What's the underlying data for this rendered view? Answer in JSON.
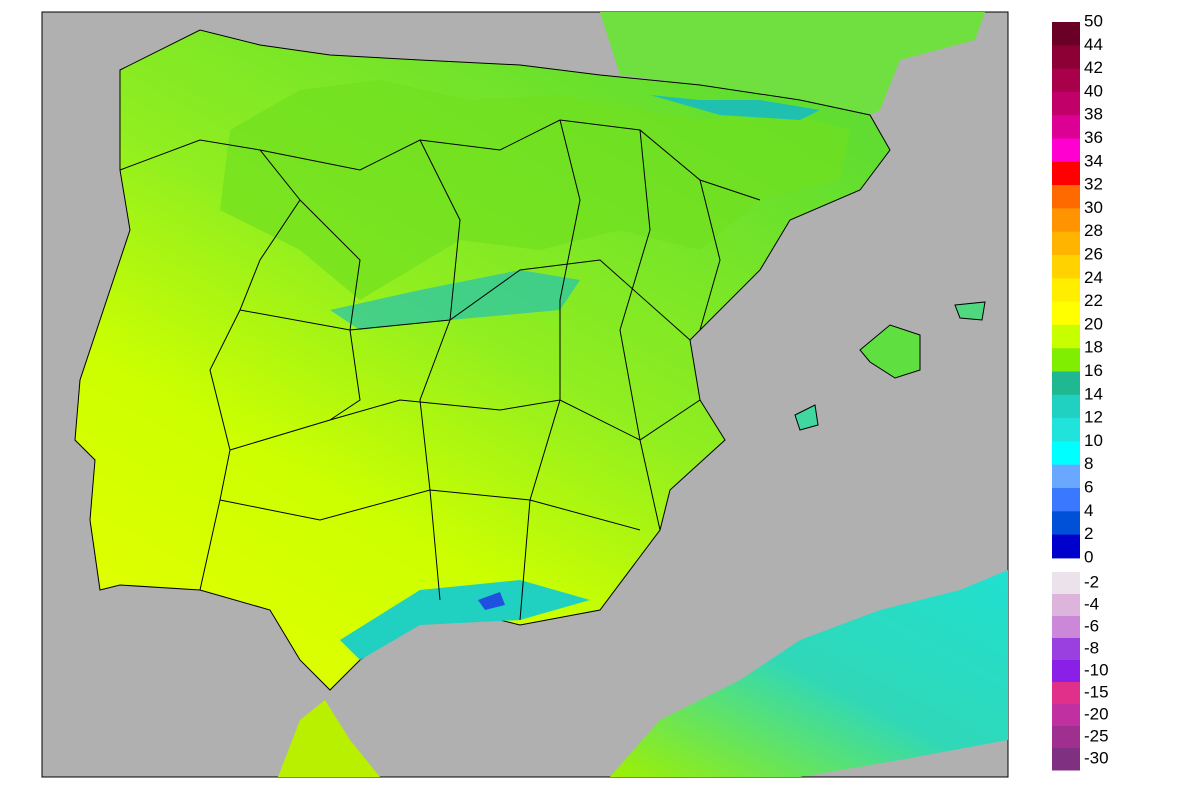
{
  "legend": {
    "positive": {
      "ticks": [
        50,
        44,
        42,
        40,
        38,
        36,
        34,
        32,
        30,
        28,
        26,
        24,
        22,
        20,
        18,
        16,
        14,
        12,
        10,
        8,
        6,
        4,
        2,
        0
      ],
      "colors": [
        "#6a0025",
        "#8c0035",
        "#a8004a",
        "#c2006a",
        "#dc0095",
        "#ff00d0",
        "#ff0000",
        "#ff6a00",
        "#ff9400",
        "#ffb400",
        "#ffd200",
        "#ffee00",
        "#ffff00",
        "#c8ff00",
        "#80ee00",
        "#20b890",
        "#20d0c0",
        "#20e4dc",
        "#00ffff",
        "#6aa8ff",
        "#3a78ff",
        "#0050d8",
        "#0000cc",
        "#000060"
      ]
    },
    "negative": {
      "ticks": [
        -2,
        -4,
        -6,
        -8,
        -10,
        -15,
        -20,
        -25,
        -30
      ],
      "colors": [
        "#ece2ec",
        "#dcb4dc",
        "#cc88d8",
        "#9a40e0",
        "#8a20e8",
        "#e0308a",
        "#c030a0",
        "#a03090",
        "#803080"
      ]
    }
  }
}
